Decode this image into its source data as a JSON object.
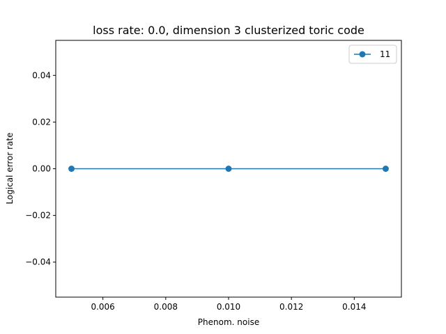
{
  "chart_data": {
    "type": "line",
    "title": "loss rate: 0.0, dimension 3 clusterized toric code",
    "xlabel": "Phenom. noise",
    "ylabel": "Logical error rate",
    "xlim": [
      0.0045,
      0.0155
    ],
    "ylim": [
      -0.055,
      0.055
    ],
    "xticks": [
      0.006,
      0.008,
      0.01,
      0.012,
      0.014
    ],
    "xtick_labels": [
      "0.006",
      "0.008",
      "0.010",
      "0.012",
      "0.014"
    ],
    "yticks": [
      -0.04,
      -0.02,
      0.0,
      0.02,
      0.04
    ],
    "ytick_labels": [
      "−0.04",
      "−0.02",
      "0.00",
      "0.02",
      "0.04"
    ],
    "grid": false,
    "legend": "upper right",
    "series": [
      {
        "name": "11",
        "color": "#1f77b4",
        "marker": "circle",
        "x": [
          0.005,
          0.01,
          0.015
        ],
        "y": [
          0.0,
          0.0,
          0.0
        ]
      }
    ]
  }
}
